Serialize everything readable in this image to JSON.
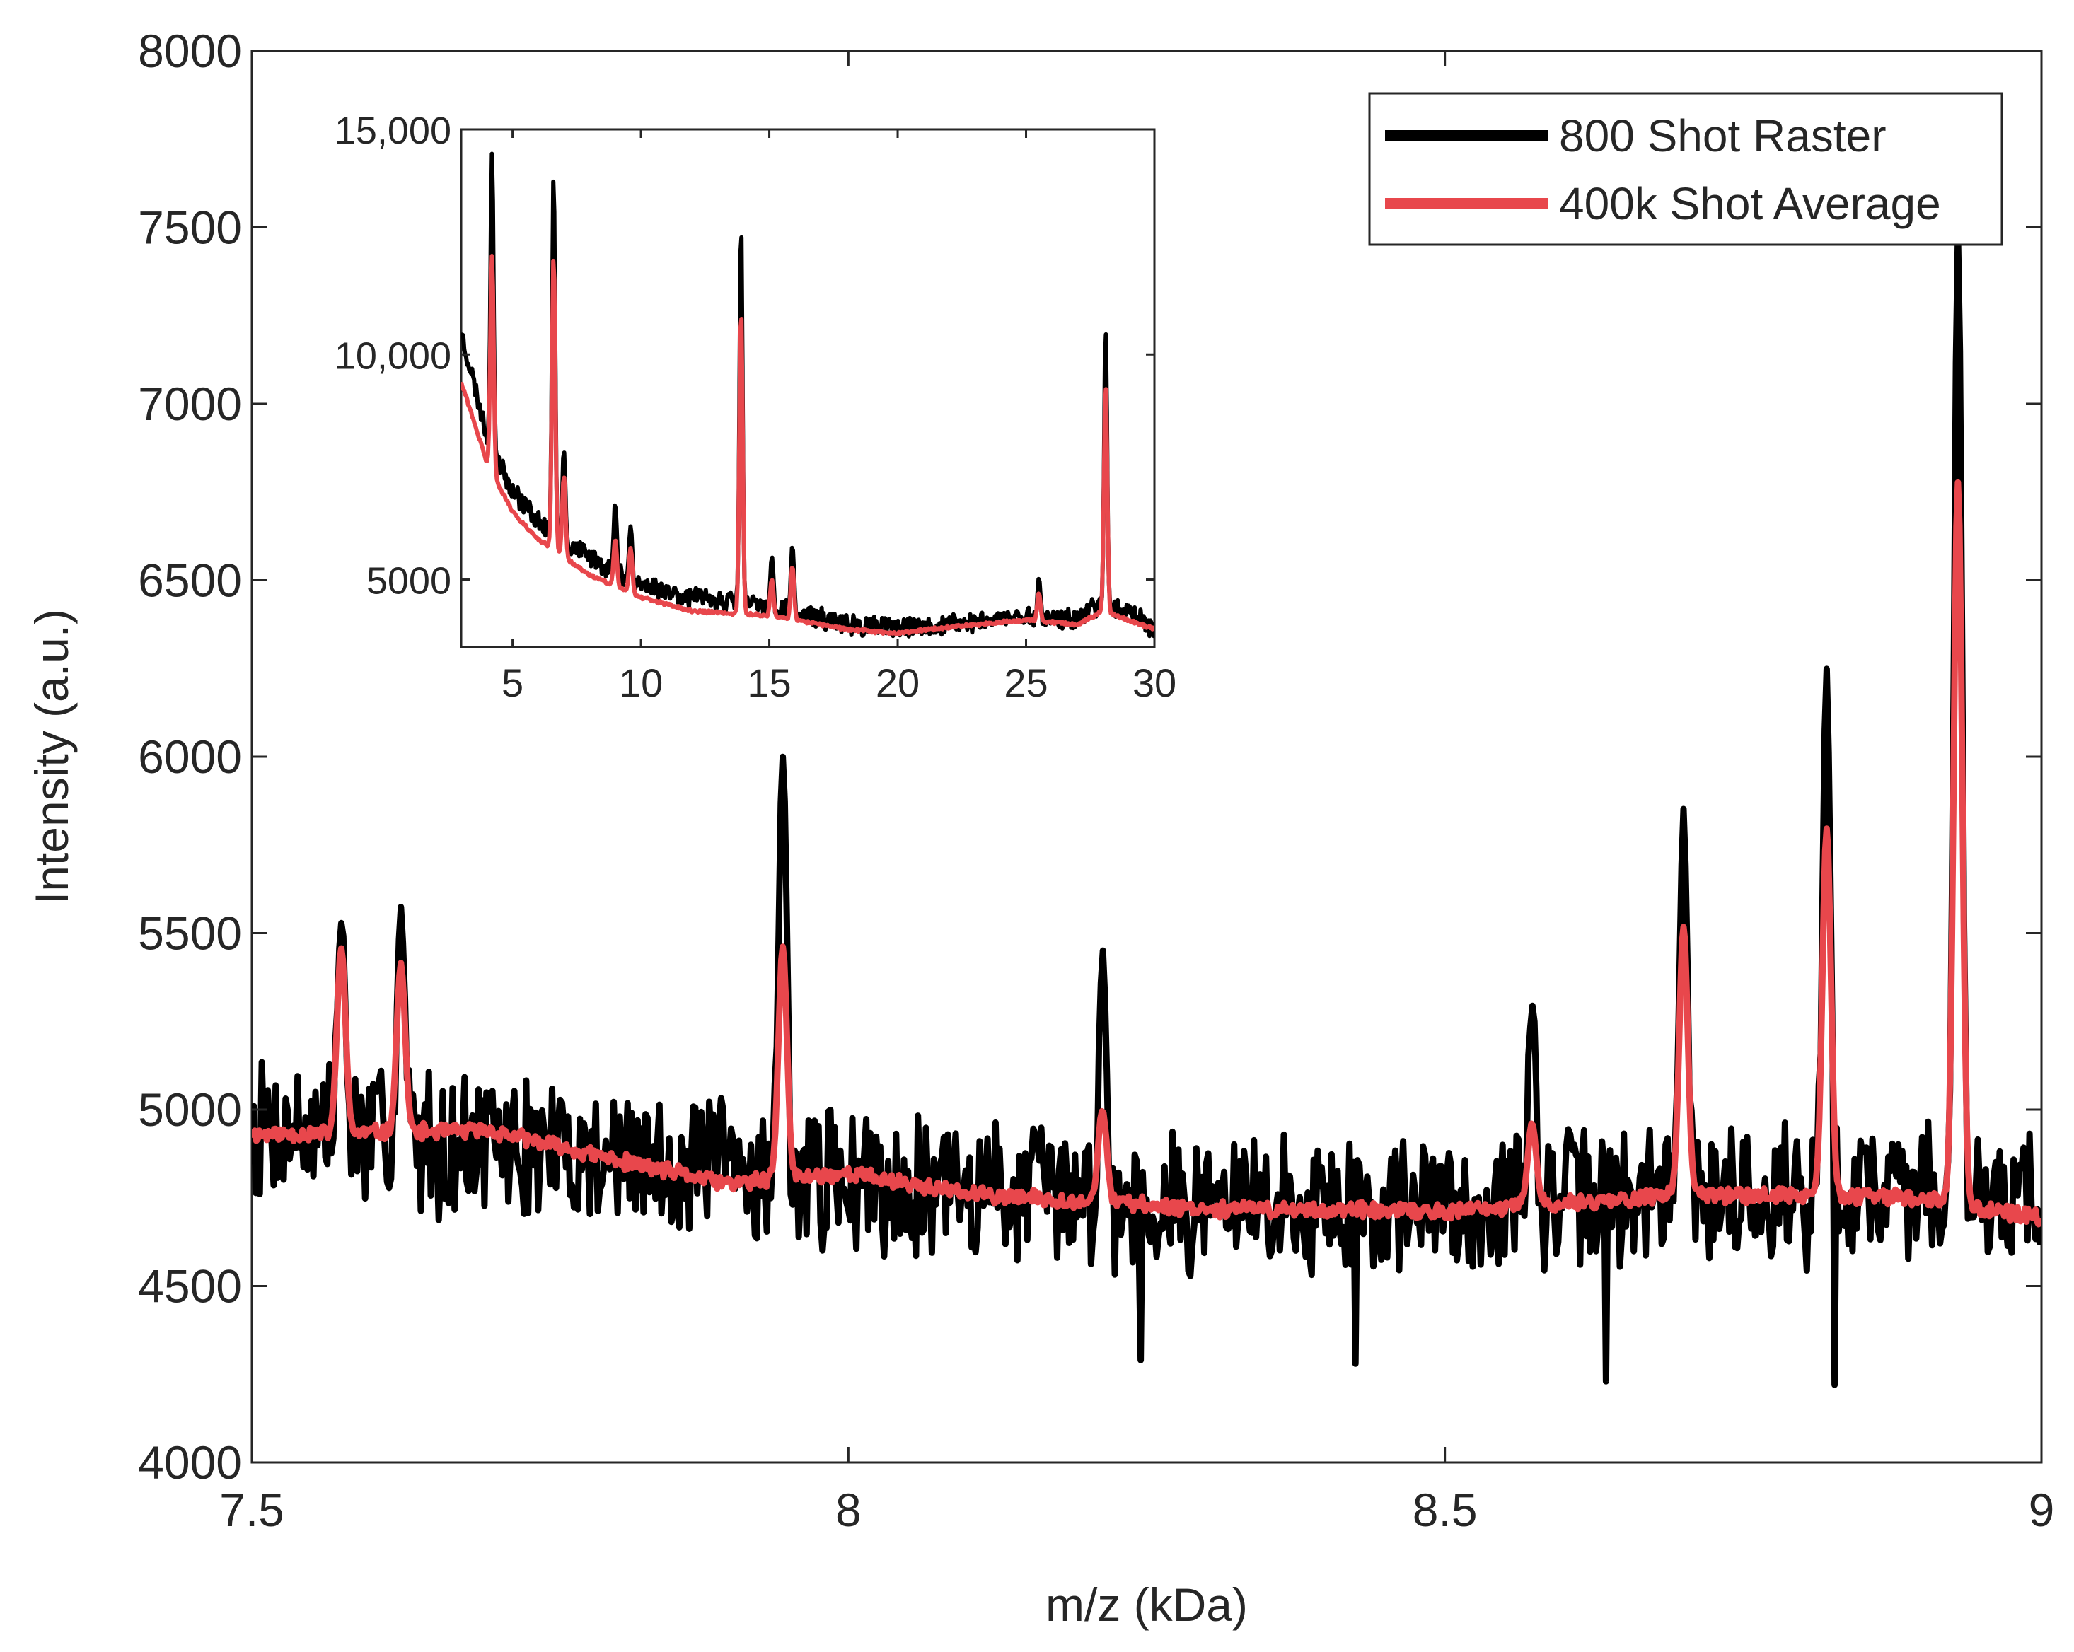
{
  "chart_data": [
    {
      "type": "line",
      "title": "",
      "xlabel": "m/z (kDa)",
      "ylabel": "Intensity (a.u.)",
      "xlim": [
        7.5,
        9
      ],
      "ylim": [
        4000,
        8000
      ],
      "xticks": [
        7.5,
        8,
        8.5,
        9
      ],
      "xtick_labels": [
        "7.5",
        "8",
        "8.5",
        "9"
      ],
      "yticks": [
        4000,
        4500,
        5000,
        5500,
        6000,
        6500,
        7000,
        7500,
        8000
      ],
      "ytick_labels": [
        "4000",
        "4500",
        "5000",
        "5500",
        "6000",
        "6500",
        "7000",
        "7500",
        "8000"
      ],
      "grid": false,
      "legend_position": "top-right",
      "series": [
        {
          "name": "800 Shot Raster",
          "color": "#000000",
          "baseline": [
            [
              7.5,
              4960
            ],
            [
              7.7,
              4900
            ],
            [
              7.9,
              4830
            ],
            [
              8.1,
              4780
            ],
            [
              8.3,
              4740
            ],
            [
              8.5,
              4730
            ],
            [
              8.7,
              4760
            ],
            [
              8.9,
              4780
            ],
            [
              9.0,
              4760
            ]
          ],
          "noise_amplitude": 230,
          "peaks": [
            {
              "x": 7.575,
              "y": 5540
            },
            {
              "x": 7.625,
              "y": 5560
            },
            {
              "x": 7.945,
              "y": 6020
            },
            {
              "x": 8.213,
              "y": 5420
            },
            {
              "x": 8.573,
              "y": 5320
            },
            {
              "x": 8.7,
              "y": 5860
            },
            {
              "x": 8.82,
              "y": 6220
            },
            {
              "x": 8.93,
              "y": 7500
            }
          ],
          "dips": [
            {
              "x": 8.245,
              "y": 4290
            },
            {
              "x": 8.425,
              "y": 4280
            },
            {
              "x": 8.635,
              "y": 4230
            },
            {
              "x": 8.827,
              "y": 4220
            }
          ]
        },
        {
          "name": "400k Shot Average",
          "color": "#e8474c",
          "baseline": [
            [
              7.5,
              4930
            ],
            [
              7.7,
              4940
            ],
            [
              7.8,
              4860
            ],
            [
              7.9,
              4790
            ],
            [
              8.0,
              4820
            ],
            [
              8.1,
              4760
            ],
            [
              8.3,
              4720
            ],
            [
              8.5,
              4710
            ],
            [
              8.7,
              4760
            ],
            [
              8.9,
              4750
            ],
            [
              9.0,
              4690
            ]
          ],
          "peaks": [
            {
              "x": 7.575,
              "y": 5460
            },
            {
              "x": 7.625,
              "y": 5410
            },
            {
              "x": 7.945,
              "y": 5460
            },
            {
              "x": 8.213,
              "y": 5000
            },
            {
              "x": 8.573,
              "y": 4960
            },
            {
              "x": 8.7,
              "y": 5520
            },
            {
              "x": 8.82,
              "y": 5800
            },
            {
              "x": 8.93,
              "y": 6780
            }
          ]
        }
      ]
    },
    {
      "type": "line",
      "title": "",
      "xlabel": "",
      "ylabel": "",
      "xlim": [
        3,
        30
      ],
      "ylim": [
        3500,
        15000
      ],
      "xticks": [
        5,
        10,
        15,
        20,
        25,
        30
      ],
      "xtick_labels": [
        "5",
        "10",
        "15",
        "20",
        "25",
        "30"
      ],
      "yticks": [
        5000,
        10000,
        15000
      ],
      "ytick_labels": [
        "5000",
        "10,000",
        "15,000"
      ],
      "grid": false,
      "series": [
        {
          "name": "800 Shot Raster",
          "color": "#000000",
          "baseline": [
            [
              3,
              10500
            ],
            [
              4,
              8200
            ],
            [
              5,
              7000
            ],
            [
              6,
              6300
            ],
            [
              7,
              5800
            ],
            [
              8,
              5500
            ],
            [
              10,
              4900
            ],
            [
              12,
              4600
            ],
            [
              15,
              4400
            ],
            [
              18,
              4000
            ],
            [
              20,
              3900
            ],
            [
              22,
              4000
            ],
            [
              25,
              4200
            ],
            [
              27,
              4100
            ],
            [
              28,
              4500
            ],
            [
              29,
              4300
            ],
            [
              30,
              3900
            ]
          ],
          "peaks": [
            {
              "x": 4.2,
              "y": 14500
            },
            {
              "x": 6.6,
              "y": 14000
            },
            {
              "x": 7.0,
              "y": 7900
            },
            {
              "x": 9.0,
              "y": 6700
            },
            {
              "x": 9.6,
              "y": 6200
            },
            {
              "x": 13.9,
              "y": 12900
            },
            {
              "x": 15.1,
              "y": 5500
            },
            {
              "x": 15.9,
              "y": 5800
            },
            {
              "x": 25.5,
              "y": 5000
            },
            {
              "x": 28.1,
              "y": 10500
            }
          ]
        },
        {
          "name": "400k Shot Average",
          "color": "#e8474c",
          "baseline": [
            [
              3,
              9400
            ],
            [
              4,
              7600
            ],
            [
              5,
              6500
            ],
            [
              6,
              5900
            ],
            [
              7,
              5500
            ],
            [
              8,
              5100
            ],
            [
              10,
              4600
            ],
            [
              12,
              4300
            ],
            [
              15,
              4200
            ],
            [
              18,
              3900
            ],
            [
              20,
              3800
            ],
            [
              22,
              3950
            ],
            [
              25,
              4100
            ],
            [
              27,
              4000
            ],
            [
              28,
              4300
            ],
            [
              29,
              4100
            ],
            [
              30,
              3900
            ]
          ],
          "peaks": [
            {
              "x": 4.2,
              "y": 12200
            },
            {
              "x": 6.6,
              "y": 12200
            },
            {
              "x": 7.0,
              "y": 7300
            },
            {
              "x": 9.0,
              "y": 5900
            },
            {
              "x": 9.6,
              "y": 5700
            },
            {
              "x": 13.9,
              "y": 11000
            },
            {
              "x": 15.1,
              "y": 5000
            },
            {
              "x": 15.9,
              "y": 5300
            },
            {
              "x": 25.5,
              "y": 4700
            },
            {
              "x": 28.1,
              "y": 9300
            }
          ]
        }
      ]
    }
  ]
}
